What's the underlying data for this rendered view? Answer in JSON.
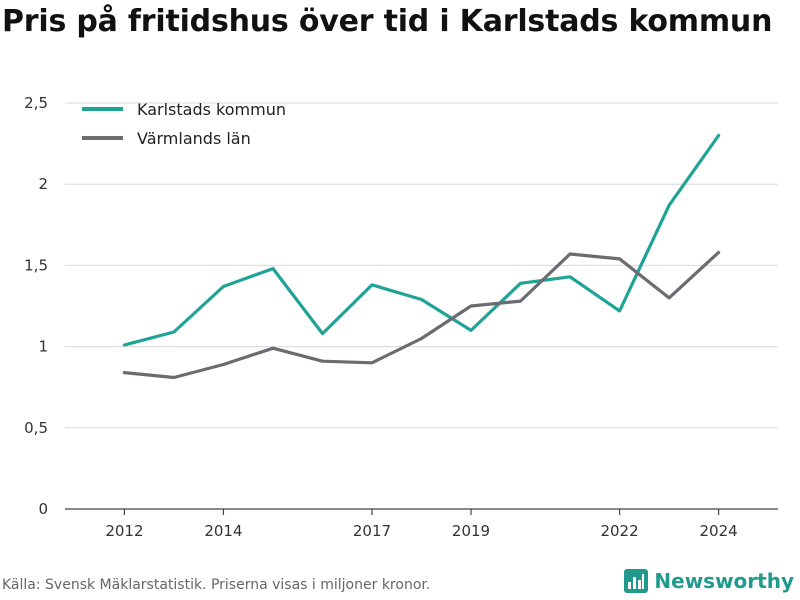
{
  "chart_data": {
    "type": "line",
    "title": "Pris på fritidshus över tid i Karlstads kommun",
    "xlabel": "",
    "ylabel": "",
    "x": [
      2012,
      2013,
      2014,
      2015,
      2016,
      2017,
      2018,
      2019,
      2020,
      2021,
      2022,
      2023,
      2024
    ],
    "x_tick_labels": [
      "2012",
      "2014",
      "2017",
      "2019",
      "2022",
      "2024"
    ],
    "x_ticks": [
      2012,
      2014,
      2017,
      2019,
      2022,
      2024
    ],
    "xlim": [
      2010.8,
      2025.2
    ],
    "ylim": [
      0,
      2.5
    ],
    "y_ticks": [
      0,
      0.5,
      1,
      1.5,
      2,
      2.5
    ],
    "y_tick_labels": [
      "0",
      "0,5",
      "1",
      "1,5",
      "2",
      "2,5"
    ],
    "grid": "horizontal",
    "legend_position": "top-left",
    "series": [
      {
        "name": "Karlstads kommun",
        "color": "#1fa396",
        "values": [
          1.01,
          1.09,
          1.37,
          1.48,
          1.08,
          1.38,
          1.29,
          1.1,
          1.39,
          1.43,
          1.22,
          1.87,
          2.3
        ]
      },
      {
        "name": "Värmlands län",
        "color": "#6b6b72",
        "values": [
          0.84,
          0.81,
          0.89,
          0.99,
          0.91,
          0.9,
          1.05,
          1.25,
          1.28,
          1.57,
          1.54,
          1.3,
          1.58
        ]
      }
    ]
  },
  "footer": {
    "source": "Källa: Svensk Mäklarstatistik. Priserna visas i miljoner kronor.",
    "brand": "Newsworthy",
    "brand_icon": "bar-chart-icon",
    "brand_color": "#1f9a8c"
  }
}
